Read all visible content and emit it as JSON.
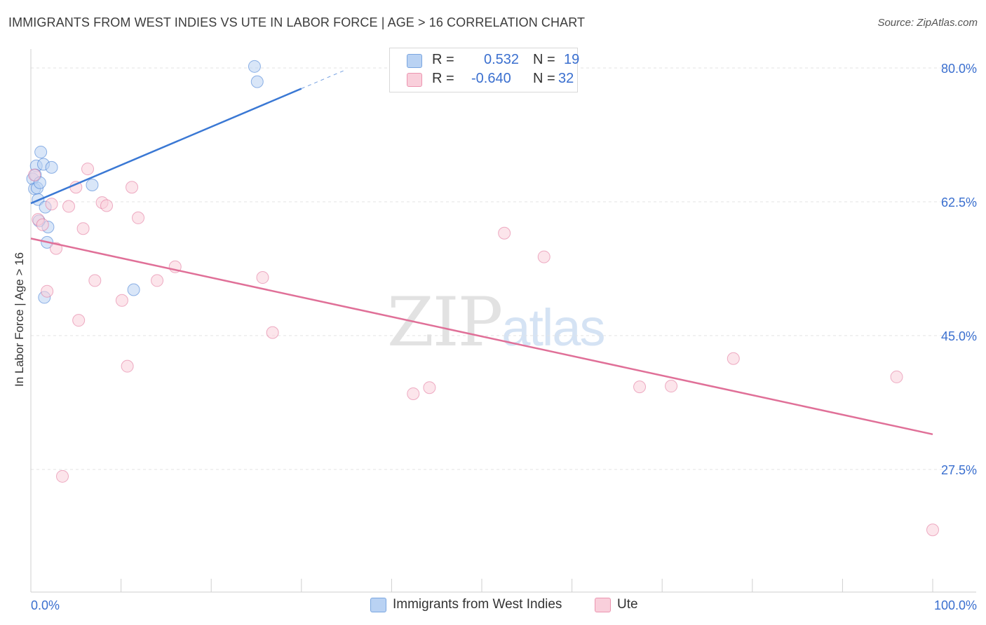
{
  "header": {
    "title": "IMMIGRANTS FROM WEST INDIES VS UTE IN LABOR FORCE | AGE > 16 CORRELATION CHART",
    "source": "Source: ZipAtlas.com"
  },
  "watermark": {
    "part1": "ZIP",
    "part2": "atlas"
  },
  "legend": {
    "rows": [
      {
        "r_label": "R =",
        "r_value": "0.532",
        "n_label": "N =",
        "n_value": "19",
        "color": "#a9c8f0",
        "border": "#7aa6e0"
      },
      {
        "r_label": "R =",
        "r_value": "-0.640",
        "n_label": "N =",
        "n_value": "32",
        "color": "#f7c1d0",
        "border": "#ec95b0"
      }
    ]
  },
  "bottom_legend": {
    "series1": "Immigrants from West Indies",
    "series2": "Ute"
  },
  "chart_data": {
    "type": "scatter",
    "title": "IMMIGRANTS FROM WEST INDIES VS UTE IN LABOR FORCE | AGE > 16 CORRELATION CHART",
    "xlabel": "",
    "ylabel": "In Labor Force | Age > 16",
    "xlim": [
      0,
      100
    ],
    "ylim": [
      12,
      82
    ],
    "x_tick_labels": [
      "0.0%",
      "100.0%"
    ],
    "y_ticks": [
      {
        "value": 80.0,
        "label": "80.0%"
      },
      {
        "value": 62.5,
        "label": "62.5%"
      },
      {
        "value": 45.0,
        "label": "45.0%"
      },
      {
        "value": 27.5,
        "label": "27.5%"
      }
    ],
    "series": [
      {
        "name": "Immigrants from West Indies",
        "color": "#3a78d4",
        "fill": "#b9d2f3",
        "points": [
          [
            0.2,
            65.5
          ],
          [
            0.4,
            64.2
          ],
          [
            0.6,
            67.2
          ],
          [
            0.8,
            62.8
          ],
          [
            1.1,
            69.0
          ],
          [
            1.4,
            67.4
          ],
          [
            1.6,
            61.8
          ],
          [
            1.9,
            59.2
          ],
          [
            2.3,
            67.0
          ],
          [
            0.9,
            60.0
          ],
          [
            1.8,
            57.2
          ],
          [
            1.5,
            50.0
          ],
          [
            6.8,
            64.7
          ],
          [
            11.4,
            51.0
          ],
          [
            24.8,
            80.2
          ],
          [
            25.1,
            78.2
          ],
          [
            0.5,
            66.0
          ],
          [
            0.7,
            64.3
          ],
          [
            1.0,
            65.0
          ]
        ],
        "trend": {
          "x0": 0.0,
          "y0": 62.3,
          "x1": 30.0,
          "y1": 77.3,
          "dash_to_x": 35.0,
          "dash_to_y": 79.8
        }
      },
      {
        "name": "Ute",
        "color": "#e07098",
        "fill": "#f9cfdb",
        "points": [
          [
            0.4,
            66.0
          ],
          [
            0.8,
            60.2
          ],
          [
            1.3,
            59.5
          ],
          [
            1.8,
            50.8
          ],
          [
            2.3,
            62.2
          ],
          [
            2.8,
            56.4
          ],
          [
            3.5,
            26.6
          ],
          [
            4.2,
            61.9
          ],
          [
            5.0,
            64.4
          ],
          [
            5.3,
            47.0
          ],
          [
            5.8,
            59.0
          ],
          [
            6.3,
            66.8
          ],
          [
            7.1,
            52.2
          ],
          [
            7.9,
            62.4
          ],
          [
            8.4,
            62.0
          ],
          [
            10.1,
            49.6
          ],
          [
            10.7,
            41.0
          ],
          [
            11.2,
            64.4
          ],
          [
            11.9,
            60.4
          ],
          [
            14.0,
            52.2
          ],
          [
            16.0,
            54.0
          ],
          [
            25.7,
            52.6
          ],
          [
            26.8,
            45.4
          ],
          [
            42.4,
            37.4
          ],
          [
            44.2,
            38.2
          ],
          [
            52.5,
            58.4
          ],
          [
            56.9,
            55.3
          ],
          [
            67.5,
            38.3
          ],
          [
            71.0,
            38.4
          ],
          [
            77.9,
            42.0
          ],
          [
            96.0,
            39.6
          ],
          [
            100.0,
            19.6
          ]
        ],
        "trend": {
          "x0": 0.0,
          "y0": 57.7,
          "x1": 100.0,
          "y1": 32.1
        }
      }
    ]
  }
}
